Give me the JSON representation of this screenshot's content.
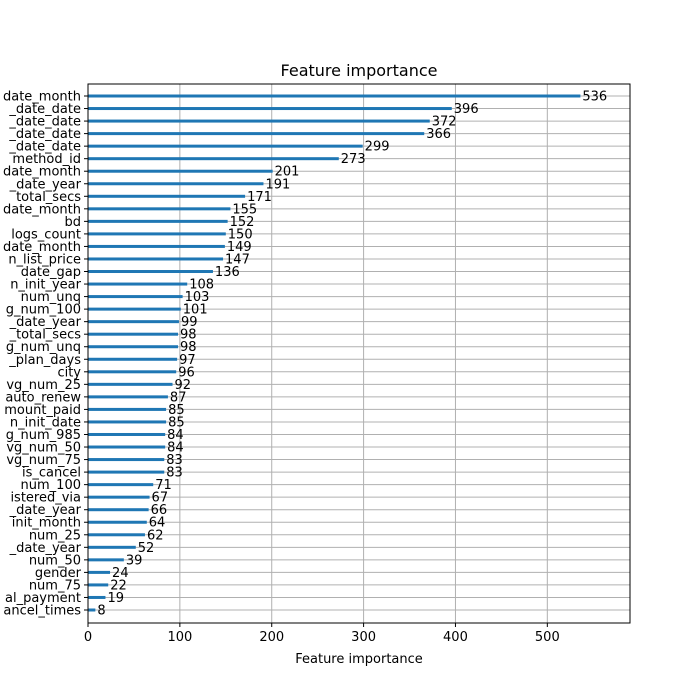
{
  "chart_data": {
    "type": "bar",
    "orientation": "horizontal",
    "title": "Feature importance",
    "xlabel": "Feature importance",
    "ylabel": "",
    "xlim": [
      0,
      590
    ],
    "x_ticks": [
      0,
      100,
      200,
      300,
      400,
      500
    ],
    "grid": true,
    "colors": {
      "bar": "#1f77b4",
      "grid": "#b0b0b0",
      "axis": "#000000"
    },
    "categories": [
      "date_month",
      "_date_date",
      "_date_date",
      "_date_date",
      "_date_date",
      "method_id",
      "date_month",
      "_date_year",
      "total_secs",
      "date_month",
      "bd",
      "logs_count",
      "date_month",
      "n_list_price",
      "date_gap",
      "n_init_year",
      "num_unq",
      "g_num_100",
      "_date_year",
      "_total_secs",
      "g_num_unq",
      "_plan_days",
      "city",
      "vg_num_25",
      "auto_renew",
      "mount_paid",
      "n_init_date",
      "g_num_985",
      "vg_num_50",
      "vg_num_75",
      "is_cancel",
      "num_100",
      "istered_via",
      "_date_year",
      "init_month",
      "num_25",
      "_date_year",
      "num_50",
      "gender",
      "num_75",
      "al_payment",
      "ancel_times"
    ],
    "values": [
      536,
      396,
      372,
      366,
      299,
      273,
      201,
      191,
      171,
      155,
      152,
      150,
      149,
      147,
      136,
      108,
      103,
      101,
      99,
      98,
      98,
      97,
      96,
      92,
      87,
      85,
      85,
      84,
      84,
      83,
      83,
      71,
      67,
      66,
      64,
      62,
      52,
      39,
      24,
      22,
      19,
      8
    ]
  }
}
